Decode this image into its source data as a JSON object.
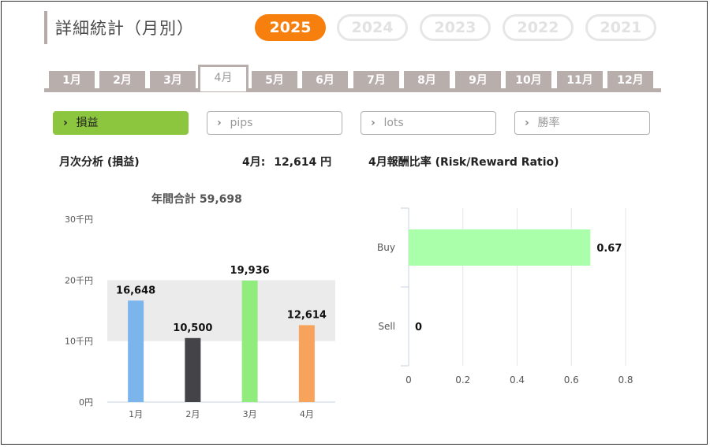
{
  "page": {
    "title": "詳細統計（月別）"
  },
  "years": [
    {
      "label": "2025",
      "active": true
    },
    {
      "label": "2024",
      "active": false
    },
    {
      "label": "2023",
      "active": false
    },
    {
      "label": "2022",
      "active": false
    },
    {
      "label": "2021",
      "active": false
    }
  ],
  "months": [
    {
      "label": "1月",
      "active": false
    },
    {
      "label": "2月",
      "active": false
    },
    {
      "label": "3月",
      "active": false
    },
    {
      "label": "4月",
      "active": true
    },
    {
      "label": "5月",
      "active": false
    },
    {
      "label": "6月",
      "active": false
    },
    {
      "label": "7月",
      "active": false
    },
    {
      "label": "8月",
      "active": false
    },
    {
      "label": "9月",
      "active": false
    },
    {
      "label": "10月",
      "active": false
    },
    {
      "label": "11月",
      "active": false
    },
    {
      "label": "12月",
      "active": false
    }
  ],
  "metrics": [
    {
      "label": "損益",
      "active": true
    },
    {
      "label": "pips",
      "active": false
    },
    {
      "label": "lots",
      "active": false
    },
    {
      "label": "勝率",
      "active": false
    }
  ],
  "icons": {
    "chevron": "chevron-right-icon"
  },
  "colors": {
    "accent_orange": "#f77f0e",
    "accent_green": "#8cc63f",
    "tab_gray": "#b8aeac"
  },
  "monthly": {
    "heading": "月次分析 (損益)",
    "current_label": "4月:",
    "current_value": "12,614 円"
  },
  "ratio": {
    "heading": "4月報酬比率 (Risk/Reward Ratio)"
  },
  "chart_data": [
    {
      "type": "bar",
      "title": "年間合計 59,698",
      "categories": [
        "1月",
        "2月",
        "3月",
        "4月"
      ],
      "values": [
        16648,
        10500,
        19936,
        12614
      ],
      "data_labels": [
        "16,648",
        "10,500",
        "19,936",
        "12,614"
      ],
      "colors": [
        "#7cb5ec",
        "#434348",
        "#90ed7d",
        "#f7a35c"
      ],
      "yticks": [
        {
          "value": 0,
          "label": "0円"
        },
        {
          "value": 10000,
          "label": "10千円"
        },
        {
          "value": 20000,
          "label": "20千円"
        },
        {
          "value": 30000,
          "label": "30千円"
        }
      ],
      "ylim": [
        0,
        30000
      ],
      "grid": "alternating bands"
    },
    {
      "type": "bar",
      "orientation": "horizontal",
      "categories": [
        "Buy",
        "Sell"
      ],
      "values": [
        0.67,
        0
      ],
      "data_labels": [
        "0.67",
        "0"
      ],
      "color": "#aaffaa",
      "xticks": [
        {
          "value": 0,
          "label": "0"
        },
        {
          "value": 0.2,
          "label": "0.2"
        },
        {
          "value": 0.4,
          "label": "0.4"
        },
        {
          "value": 0.6,
          "label": "0.6"
        },
        {
          "value": 0.8,
          "label": "0.8"
        }
      ],
      "xlim": [
        0,
        0.8
      ],
      "grid": true
    }
  ]
}
